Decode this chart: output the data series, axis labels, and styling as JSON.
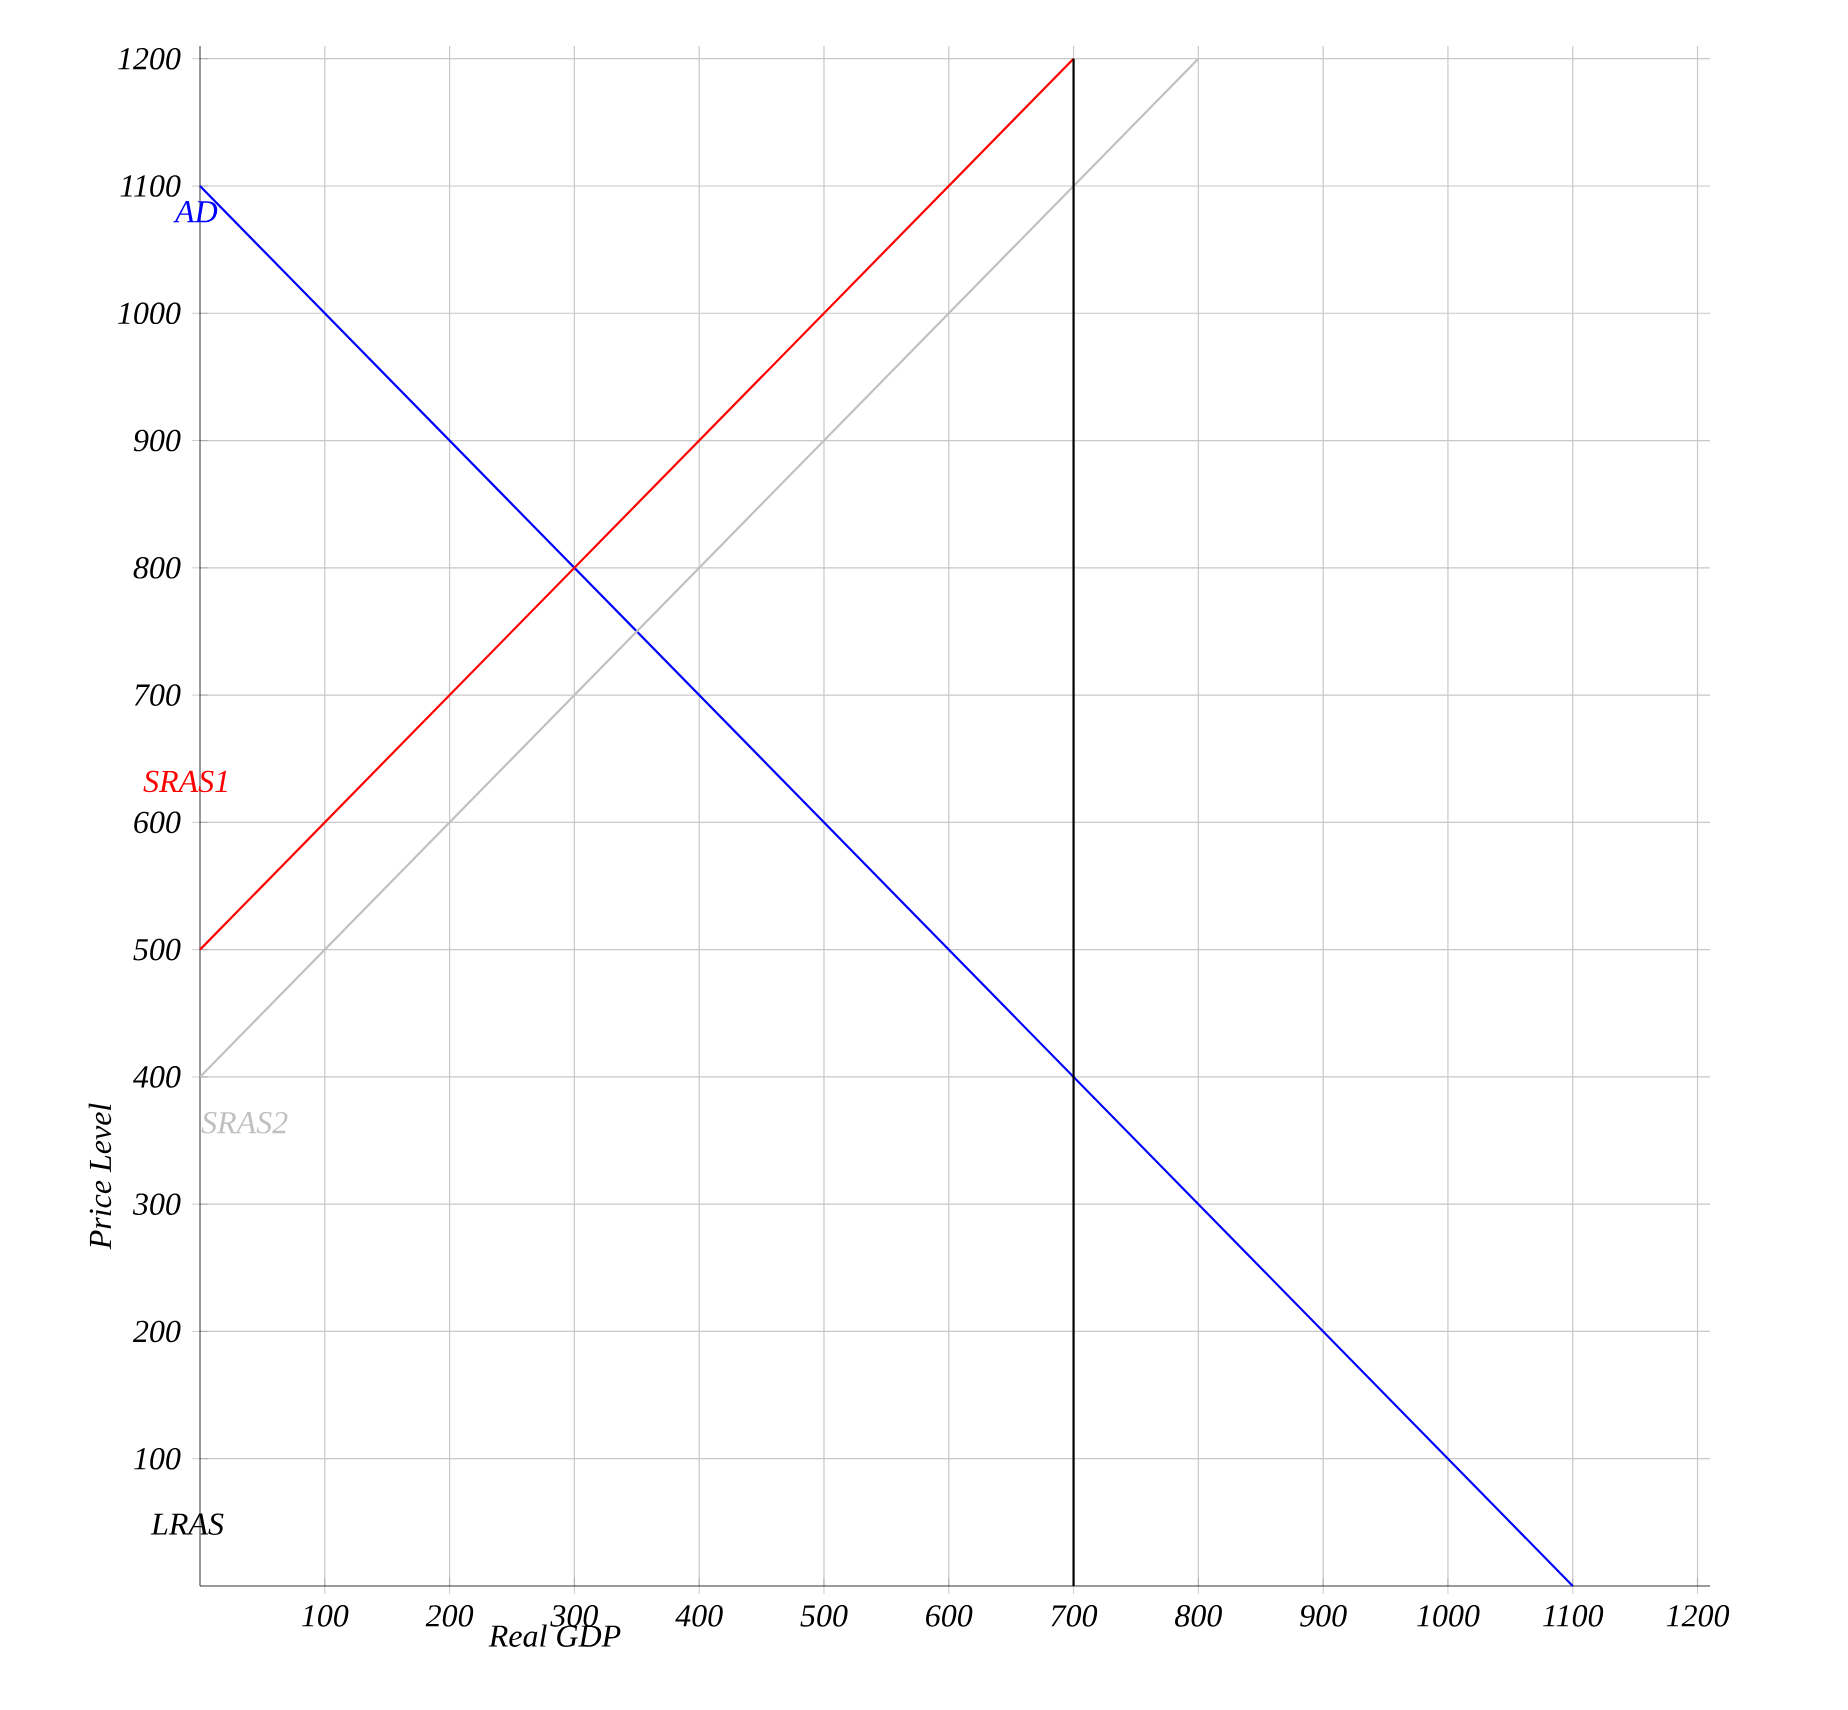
{
  "chart_data": {
    "type": "line",
    "xlabel": "Real GDP",
    "ylabel": "Price Level",
    "xlim": [
      0,
      1210
    ],
    "ylim": [
      0,
      1210
    ],
    "xticks": [
      100,
      200,
      300,
      400,
      500,
      600,
      700,
      800,
      900,
      1000,
      1100,
      1200
    ],
    "yticks": [
      100,
      200,
      300,
      400,
      500,
      600,
      700,
      800,
      900,
      1000,
      1100,
      1200
    ],
    "grid": true,
    "marker": "none",
    "line_style": "solid",
    "series": [
      {
        "name": "AD",
        "color": "#0000ff",
        "x": [
          0,
          1100
        ],
        "values": [
          1100,
          0
        ]
      },
      {
        "name": "SRAS1",
        "color": "#ff0000",
        "x": [
          0,
          700
        ],
        "values": [
          500,
          1200
        ]
      },
      {
        "name": "SRAS2",
        "color": "#c0c0c0",
        "x": [
          0,
          800
        ],
        "values": [
          400,
          1200
        ]
      },
      {
        "name": "LRAS",
        "color": "#000000",
        "x": [
          700,
          700
        ],
        "values": [
          0,
          1200
        ]
      }
    ]
  }
}
